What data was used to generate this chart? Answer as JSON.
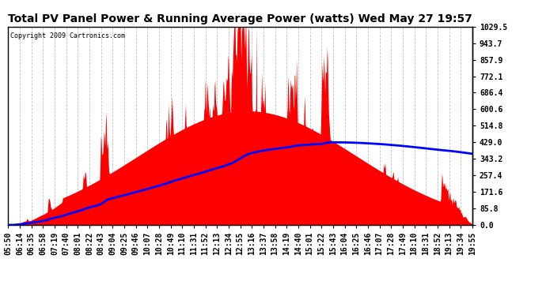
{
  "title": "Total PV Panel Power & Running Average Power (watts) Wed May 27 19:57",
  "copyright": "Copyright 2009 Cartronics.com",
  "ylabel_right_values": [
    0.0,
    85.8,
    171.6,
    257.4,
    343.2,
    429.0,
    514.8,
    600.6,
    686.4,
    772.1,
    857.9,
    943.7,
    1029.5
  ],
  "ymax": 1029.5,
  "background_color": "#ffffff",
  "plot_bg_color": "#ffffff",
  "bar_color": "#ff0000",
  "avg_line_color": "#0000ff",
  "grid_color": "#c0c0c0",
  "title_fontsize": 10,
  "tick_fontsize": 7,
  "x_tick_labels": [
    "05:50",
    "06:14",
    "06:35",
    "06:58",
    "07:19",
    "07:40",
    "08:01",
    "08:22",
    "08:43",
    "09:04",
    "09:25",
    "09:46",
    "10:07",
    "10:28",
    "10:49",
    "11:10",
    "11:31",
    "11:52",
    "12:13",
    "12:34",
    "12:55",
    "13:16",
    "13:37",
    "13:58",
    "14:19",
    "14:40",
    "15:01",
    "15:22",
    "15:43",
    "16:04",
    "16:25",
    "16:46",
    "17:07",
    "17:28",
    "17:49",
    "18:10",
    "18:31",
    "18:52",
    "19:13",
    "19:34",
    "19:55"
  ]
}
